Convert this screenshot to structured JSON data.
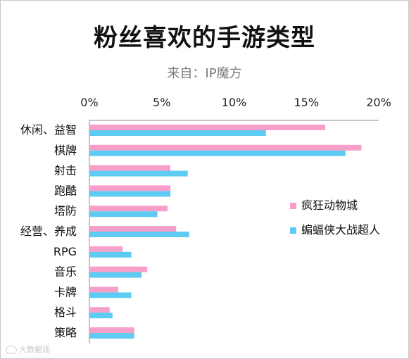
{
  "chart_data": {
    "type": "bar",
    "orientation": "horizontal",
    "title": "粉丝喜欢的手游类型",
    "subtitle": "来自：IP魔方",
    "xlim": [
      0,
      20
    ],
    "xticks": [
      "0%",
      "5%",
      "10%",
      "15%",
      "20%"
    ],
    "tick_values": [
      0,
      5,
      10,
      15,
      20
    ],
    "categories": [
      "休闲、益智",
      "棋牌",
      "射击",
      "跑酷",
      "塔防",
      "经营、养成",
      "RPG",
      "音乐",
      "卡牌",
      "格斗",
      "策略"
    ],
    "series": [
      {
        "name": "疯狂动物城",
        "color": "#f79fcb",
        "values": [
          16.3,
          18.8,
          5.6,
          5.6,
          5.4,
          6.0,
          2.3,
          4.0,
          2.0,
          1.4,
          3.1
        ]
      },
      {
        "name": "蝙蝠侠大战超人",
        "color": "#5ecbf3",
        "values": [
          12.2,
          17.7,
          6.8,
          5.6,
          4.7,
          6.9,
          2.9,
          3.6,
          2.9,
          1.6,
          3.1
        ]
      }
    ],
    "legend_position": "right"
  },
  "watermark": "大数据观"
}
